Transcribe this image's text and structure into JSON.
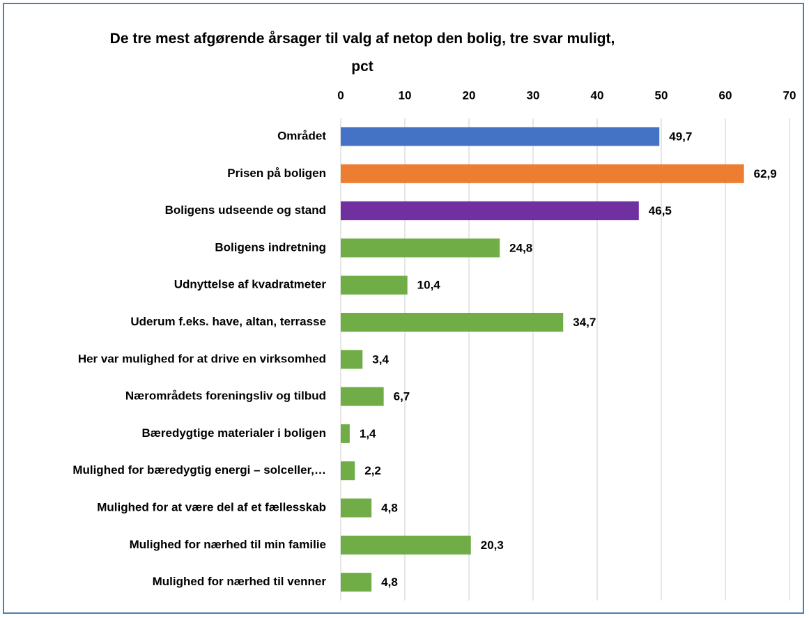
{
  "chart_data": {
    "type": "hbar",
    "title": "De tre mest afgørende årsager til valg af netop den bolig, tre svar muligt, pct",
    "categories": [
      "Området",
      "Prisen på boligen",
      "Boligens udseende og stand",
      "Boligens indretning",
      "Udnyttelse af kvadratmeter",
      "Uderum f.eks. have, altan, terrasse",
      "Her var mulighed for at drive en virksomhed",
      "Nærområdets foreningsliv og tilbud",
      "Bæredygtige materialer i boligen",
      "Mulighed for bæredygtig energi – solceller,…",
      "Mulighed for at være del af et fællesskab",
      "Mulighed for nærhed til min familie",
      "Mulighed for nærhed til venner"
    ],
    "values": [
      49.7,
      62.9,
      46.5,
      24.8,
      10.4,
      34.7,
      3.4,
      6.7,
      1.4,
      2.2,
      4.8,
      20.3,
      4.8
    ],
    "value_labels": [
      "49,7",
      "62,9",
      "46,5",
      "24,8",
      "10,4",
      "34,7",
      "3,4",
      "6,7",
      "1,4",
      "2,2",
      "4,8",
      "20,3",
      "4,8"
    ],
    "colors": [
      "#4472c4",
      "#ed7d31",
      "#7030a0",
      "#70ad47",
      "#70ad47",
      "#70ad47",
      "#70ad47",
      "#70ad47",
      "#70ad47",
      "#70ad47",
      "#70ad47",
      "#70ad47",
      "#70ad47"
    ],
    "xlim": [
      0,
      70
    ],
    "xticks": [
      0,
      10,
      20,
      30,
      40,
      50,
      60,
      70
    ],
    "grid": true
  }
}
